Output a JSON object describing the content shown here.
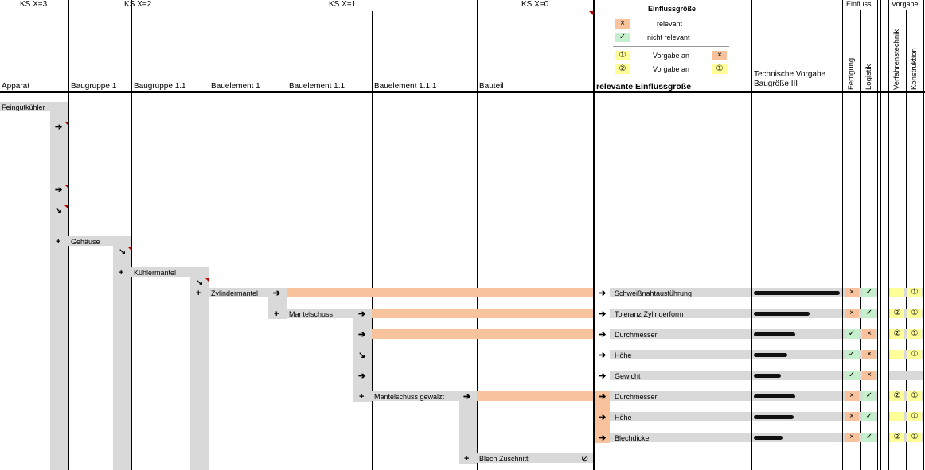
{
  "header": {
    "ks3": "KS X=3",
    "ks2": "KS X=2",
    "ks1": "KS X=1",
    "ks0": "KS X=0",
    "einfluss_group": "Einfluss",
    "vorgabe_group": "Vorgabe"
  },
  "columns": {
    "apparat": "Apparat",
    "bg1": "Baugruppe 1",
    "bg11": "Baugruppe 1.1",
    "be1": "Bauelement 1",
    "be11": "Bauelement 1.1",
    "be111": "Bauelement 1.1.1",
    "bauteil": "Bauteil",
    "relevant": "relevante Einflussgröße",
    "tech_line1": "Technische Vorgabe",
    "tech_line2": "Baugröße III",
    "fertigung": "Fertigung",
    "logistik": "Logistik",
    "verfahren": "Verfahrenstechnik",
    "konstruktion": "Konstruktion"
  },
  "legend": {
    "title": "Einflussgröße",
    "relevant_sym": "×",
    "relevant_label": "relevant",
    "notrel_sym": "✓",
    "notrel_label": "nicht relevant",
    "v1_sym": "①",
    "v1_label": "Vorgabe an",
    "v1_target": "×",
    "v2_sym": "②",
    "v2_label": "Vorgabe an",
    "v2_target": "①"
  },
  "tree": {
    "feingutkuehler": "Feingutkühler",
    "gehaeuse": "Gehäuse",
    "kuehlermantel": "Kühlermantel",
    "zylindermantel": "Zylindermantel",
    "mantelschuss": "Mantelschuss",
    "mantelschuss_gewalzt": "Mantelschuss gewalzt",
    "blech_zuschnitt": "Blech Zuschnitt"
  },
  "rows": [
    {
      "name": "Schweißnahtausführung",
      "fertigung": "×",
      "logistik": "✓",
      "verfahren": "",
      "konstruktion": "①"
    },
    {
      "name": "Toleranz Zylinderform",
      "fertigung": "×",
      "logistik": "✓",
      "verfahren": "②",
      "konstruktion": "①"
    },
    {
      "name": "Durchmesser",
      "fertigung": "✓",
      "logistik": "×",
      "verfahren": "②",
      "konstruktion": "①"
    },
    {
      "name": "Höhe",
      "fertigung": "✓",
      "logistik": "×",
      "verfahren": "",
      "konstruktion": "①"
    },
    {
      "name": "Gewicht",
      "fertigung": "✓",
      "logistik": "×",
      "verfahren": "",
      "konstruktion": ""
    },
    {
      "name": "Durchmesser",
      "fertigung": "×",
      "logistik": "✓",
      "verfahren": "②",
      "konstruktion": "①"
    },
    {
      "name": "Höhe",
      "fertigung": "×",
      "logistik": "✓",
      "verfahren": "",
      "konstruktion": "①"
    },
    {
      "name": "Blechdicke",
      "fertigung": "×",
      "logistik": "✓",
      "verfahren": "②",
      "konstruktion": "①"
    }
  ],
  "colors": {
    "orange": "#f8c39c",
    "green": "#c6efce",
    "yellow": "#ffff99",
    "gray": "#d9d9d9"
  }
}
